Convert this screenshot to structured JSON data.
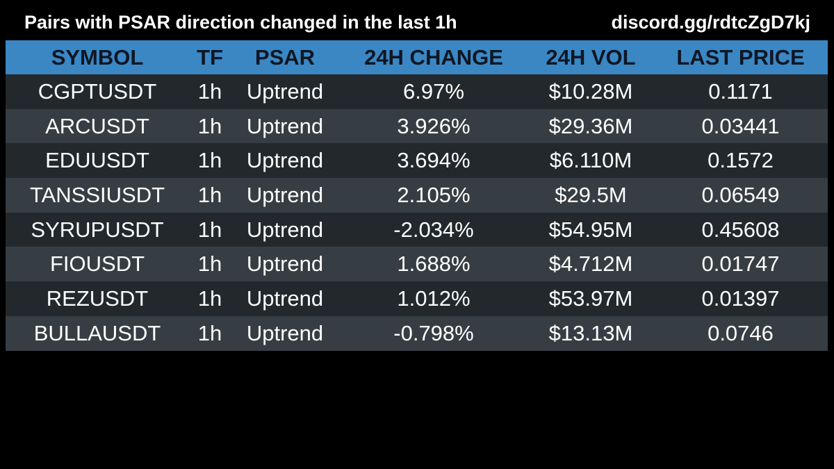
{
  "header": {
    "title": "Pairs with PSAR direction changed in the last 1h",
    "invite": "discord.gg/rdtcZgD7kj"
  },
  "table": {
    "columns": [
      "SYMBOL",
      "TF",
      "PSAR",
      "24H CHANGE",
      "24H VOL",
      "LAST PRICE"
    ],
    "rows": [
      {
        "symbol": "CGPTUSDT",
        "tf": "1h",
        "psar": "Uptrend",
        "change": "6.97%",
        "vol": "$10.28M",
        "price": "0.1171"
      },
      {
        "symbol": "ARCUSDT",
        "tf": "1h",
        "psar": "Uptrend",
        "change": "3.926%",
        "vol": "$29.36M",
        "price": "0.03441"
      },
      {
        "symbol": "EDUUSDT",
        "tf": "1h",
        "psar": "Uptrend",
        "change": "3.694%",
        "vol": "$6.110M",
        "price": "0.1572"
      },
      {
        "symbol": "TANSSIUSDT",
        "tf": "1h",
        "psar": "Uptrend",
        "change": "2.105%",
        "vol": "$29.5M",
        "price": "0.06549"
      },
      {
        "symbol": "SYRUPUSDT",
        "tf": "1h",
        "psar": "Uptrend",
        "change": "-2.034%",
        "vol": "$54.95M",
        "price": "0.45608"
      },
      {
        "symbol": "FIOUSDT",
        "tf": "1h",
        "psar": "Uptrend",
        "change": "1.688%",
        "vol": "$4.712M",
        "price": "0.01747"
      },
      {
        "symbol": "REZUSDT",
        "tf": "1h",
        "psar": "Uptrend",
        "change": "1.012%",
        "vol": "$53.97M",
        "price": "0.01397"
      },
      {
        "symbol": "BULLAUSDT",
        "tf": "1h",
        "psar": "Uptrend",
        "change": "-0.798%",
        "vol": "$13.13M",
        "price": "0.0746"
      }
    ]
  },
  "colors": {
    "background": "#000000",
    "header_row": "#3a87c4",
    "header_text": "#101623",
    "row_dark": "#23282c",
    "row_light": "#373e43",
    "text": "#ffffff"
  }
}
